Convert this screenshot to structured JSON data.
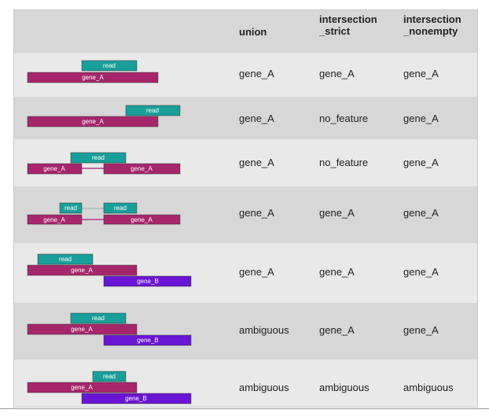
{
  "header": {
    "union": "union",
    "strict_1": "intersection",
    "strict_2": "_strict",
    "nonempty_1": "intersection",
    "nonempty_2": "_nonempty"
  },
  "bar_colors": {
    "read": "#1a9e9a",
    "gene_A": "#a6266c",
    "gene_B": "#6a14d4",
    "intron_line": "#b83a8a"
  },
  "rows": [
    {
      "read_labels": [
        "read"
      ],
      "gene_labels": [
        "gene_A"
      ],
      "union": "gene_A",
      "strict": "gene_A",
      "nonempty": "gene_A"
    },
    {
      "read_labels": [
        "read"
      ],
      "gene_labels": [
        "gene_A"
      ],
      "union": "gene_A",
      "strict": "no_feature",
      "nonempty": "gene_A"
    },
    {
      "read_labels": [
        "read"
      ],
      "gene_labels": [
        "gene_A",
        "gene_A"
      ],
      "union": "gene_A",
      "strict": "no_feature",
      "nonempty": "gene_A"
    },
    {
      "read_labels": [
        "read",
        "read"
      ],
      "gene_labels": [
        "gene_A",
        "gene_A"
      ],
      "union": "gene_A",
      "strict": "gene_A",
      "nonempty": "gene_A"
    },
    {
      "read_labels": [
        "read"
      ],
      "gene_labels": [
        "gene_A",
        "gene_B"
      ],
      "union": "gene_A",
      "strict": "gene_A",
      "nonempty": "gene_A"
    },
    {
      "read_labels": [
        "read"
      ],
      "gene_labels": [
        "gene_A",
        "gene_B"
      ],
      "union": "ambiguous",
      "strict": "gene_A",
      "nonempty": "gene_A"
    },
    {
      "read_labels": [
        "read"
      ],
      "gene_labels": [
        "gene_A",
        "gene_B"
      ],
      "union": "ambiguous",
      "strict": "ambiguous",
      "nonempty": "ambiguous"
    }
  ]
}
